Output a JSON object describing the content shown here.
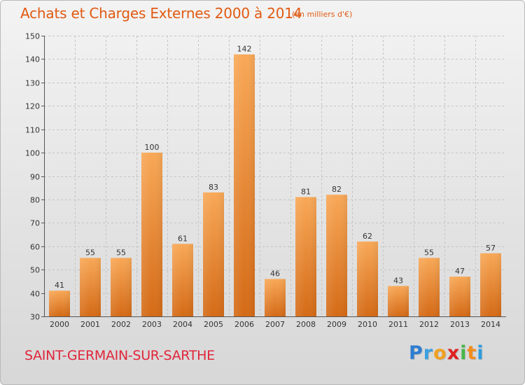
{
  "header": {
    "title": "Achats et Charges Externes 2000 à 2014",
    "subtitle": "(en milliers d'€)"
  },
  "footer": {
    "commune": "SAINT-GERMAIN-SUR-SARTHE",
    "logo_letters": [
      "P",
      "r",
      "o",
      "x",
      "i",
      "t",
      "i"
    ],
    "logo_colors": [
      "#2e7dd1",
      "#3aa0e0",
      "#f0a020",
      "#e02020",
      "#49b649",
      "#f28c1e",
      "#2e9de0"
    ]
  },
  "colors": {
    "bar_top": "#f8a857",
    "bar_bottom": "#d46a16",
    "title": "#e05a12",
    "commune": "#e0263b"
  },
  "chart_data": {
    "type": "bar",
    "title": "Achats et Charges Externes 2000 à 2014",
    "subtitle": "(en milliers d'€)",
    "categories": [
      "2000",
      "2001",
      "2002",
      "2003",
      "2004",
      "2005",
      "2006",
      "2007",
      "2008",
      "2009",
      "2010",
      "2011",
      "2012",
      "2013",
      "2014"
    ],
    "values": [
      41,
      55,
      55,
      100,
      61,
      83,
      142,
      46,
      81,
      82,
      62,
      43,
      55,
      47,
      57
    ],
    "xlabel": "",
    "ylabel": "",
    "ylim": [
      30,
      150
    ],
    "yticks": [
      30,
      40,
      50,
      60,
      70,
      80,
      90,
      100,
      110,
      120,
      130,
      140,
      150
    ],
    "grid": true
  }
}
